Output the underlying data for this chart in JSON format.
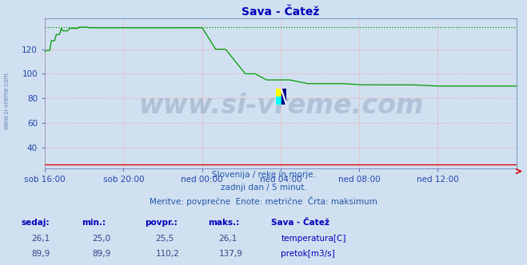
{
  "title": "Sava - Čatež",
  "bg_color": "#d0e0f0",
  "plot_bg_color": "#d0e0f0",
  "grid_color": "#ff9999",
  "grid_style": ":",
  "x_labels": [
    "sob 16:00",
    "sob 20:00",
    "ned 00:00",
    "ned 04:00",
    "ned 08:00",
    "ned 12:00"
  ],
  "x_ticks_frac": [
    0.0,
    0.1667,
    0.3333,
    0.5,
    0.6667,
    0.8333
  ],
  "total_points": 288,
  "y_min": 23,
  "y_max": 145,
  "y_ticks": [
    40,
    60,
    80,
    100,
    120
  ],
  "title_color": "#0000bb",
  "title_fontsize": 10,
  "axis_label_color": "#2244aa",
  "axis_label_fontsize": 7.5,
  "temp_color": "#dd0000",
  "flow_color": "#009900",
  "watermark_text": "www.si-vreme.com",
  "watermark_color": "#1a3a6a",
  "watermark_alpha": 0.18,
  "watermark_fontsize": 24,
  "footer_line1": "Slovenija / reke in morje.",
  "footer_line2": "zadnji dan / 5 minut.",
  "footer_line3": "Meritve: povprečne  Enote: metrične  Črta: maksimum",
  "footer_color": "#2255aa",
  "footer_fontsize": 7.5,
  "table_headers": [
    "sedaj:",
    "min.:",
    "povpr.:",
    "maks.:"
  ],
  "table_header_color": "#0000bb",
  "table_value_color": "#334488",
  "station_name": "Sava - Čatež",
  "temp_sedaj": "26,1",
  "temp_min": "25,0",
  "temp_povpr": "25,5",
  "temp_maks": "26,1",
  "temp_label": "temperatura[C]",
  "flow_sedaj": "89,9",
  "flow_min": "89,9",
  "flow_povpr": "110,2",
  "flow_maks": "137,9",
  "flow_label": "pretok[m3/s]",
  "temp_max_value": 26.1,
  "flow_max_value": 137.9
}
